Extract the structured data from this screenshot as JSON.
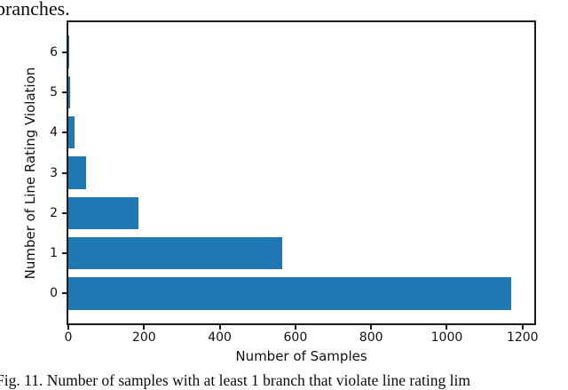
{
  "page": {
    "top_text": "branches.",
    "caption": "Fig. 11. Number of samples with at least 1 branch that violate line rating lim"
  },
  "colors": {
    "bar": "#1f77b4",
    "spine": "#1a1a1a",
    "text": "#111111"
  },
  "chart_data": {
    "type": "bar",
    "orientation": "horizontal",
    "title": "",
    "xlabel": "Number of Samples",
    "ylabel": "Number of Line Rating Violation",
    "categories": [
      0,
      1,
      2,
      3,
      4,
      5,
      6
    ],
    "values": [
      1170,
      565,
      186,
      47,
      16,
      5,
      1
    ],
    "xticks": [
      0,
      200,
      400,
      600,
      800,
      1000,
      1200
    ],
    "yticks": [
      0,
      1,
      2,
      3,
      4,
      5,
      6
    ],
    "xlim": [
      0,
      1231
    ],
    "ylim": [
      -0.74,
      6.74
    ],
    "bar_height_fraction": 0.8,
    "grid": false,
    "legend": null
  }
}
